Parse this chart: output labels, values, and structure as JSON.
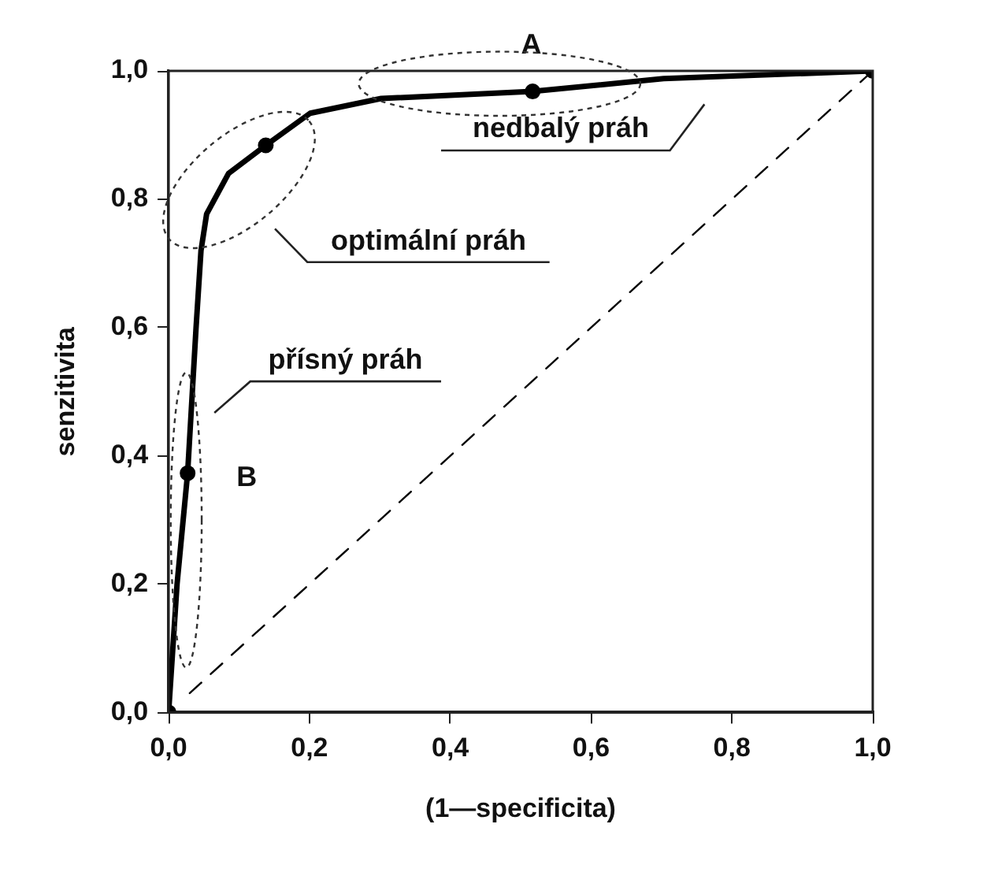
{
  "chart_data": {
    "type": "line",
    "xlabel": "(1—specificita)",
    "ylabel": "senzitivita",
    "xlim": [
      0,
      1
    ],
    "ylim": [
      0,
      1
    ],
    "xticks": [
      {
        "value": 0,
        "label": "0,0"
      },
      {
        "value": 0.2,
        "label": "0,2"
      },
      {
        "value": 0.4,
        "label": "0,4"
      },
      {
        "value": 0.6,
        "label": "0,6"
      },
      {
        "value": 0.8,
        "label": "0,8"
      },
      {
        "value": 1,
        "label": "1,0"
      }
    ],
    "yticks": [
      {
        "value": 0,
        "label": "0,0"
      },
      {
        "value": 0.2,
        "label": "0,2"
      },
      {
        "value": 0.4,
        "label": "0,4"
      },
      {
        "value": 0.6,
        "label": "0,6"
      },
      {
        "value": 0.8,
        "label": "0,8"
      },
      {
        "value": 1,
        "label": "1,0"
      }
    ],
    "grid": false,
    "legend": false,
    "series": [
      {
        "type": "line",
        "color": "#000000",
        "marker": "none",
        "line_style": "solid",
        "x": [
          0,
          0.012,
          0.027,
          0.039,
          0.046,
          0.054,
          0.085,
          0.138,
          0.201,
          0.302,
          0.517,
          0.703,
          1
        ],
        "values": [
          0,
          0.2,
          0.373,
          0.6,
          0.72,
          0.777,
          0.84,
          0.884,
          0.934,
          0.957,
          0.968,
          0.988,
          1
        ]
      },
      {
        "type": "scatter",
        "color": "#000000",
        "marker": "circle",
        "x": [
          0,
          0.027,
          0.138,
          0.517,
          1
        ],
        "values": [
          0,
          0.373,
          0.884,
          0.968,
          1
        ]
      },
      {
        "type": "line",
        "color": "#000000",
        "marker": "none",
        "line_style": "dashed",
        "x": [
          0.03,
          1
        ],
        "values": [
          0.03,
          1
        ]
      }
    ],
    "annotations": [
      "A",
      "B",
      "nedbalý práh",
      "optimální práh",
      "přísný práh"
    ]
  }
}
